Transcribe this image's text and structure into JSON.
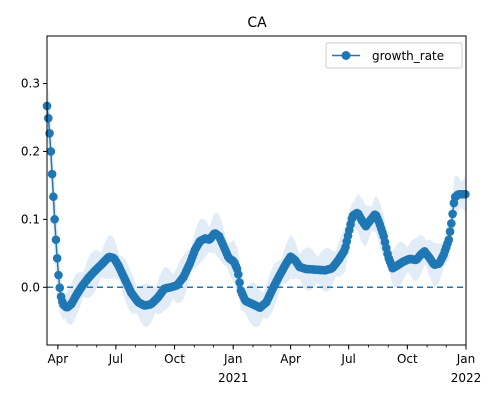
{
  "chart_data": {
    "type": "line",
    "title": "CA",
    "xlabel": "",
    "ylabel": "",
    "x_ticks": [
      {
        "date": "2020-04-01",
        "label": "Apr",
        "sub": ""
      },
      {
        "date": "2020-07-01",
        "label": "Jul",
        "sub": ""
      },
      {
        "date": "2020-10-01",
        "label": "Oct",
        "sub": ""
      },
      {
        "date": "2021-01-01",
        "label": "Jan",
        "sub": "2021"
      },
      {
        "date": "2021-04-01",
        "label": "Apr",
        "sub": ""
      },
      {
        "date": "2021-07-01",
        "label": "Jul",
        "sub": ""
      },
      {
        "date": "2021-10-01",
        "label": "Oct",
        "sub": ""
      },
      {
        "date": "2022-01-01",
        "label": "Jan",
        "sub": "2022"
      }
    ],
    "y_ticks": [
      "0.0",
      "0.1",
      "0.2",
      "0.3"
    ],
    "xlim": [
      "2020-03-15",
      "2022-01-01"
    ],
    "ylim": [
      -0.085,
      0.37
    ],
    "grid": false,
    "legend": {
      "position": "upper right",
      "entries": [
        "growth_rate"
      ]
    },
    "reference_line": {
      "y": 0.0,
      "style": "dashed"
    },
    "colors": {
      "line": "#1f77b4",
      "band": "#cfe0f1"
    },
    "series": [
      {
        "name": "growth_rate",
        "points": [
          [
            "2020-03-15",
            0.267
          ],
          [
            "2020-03-18",
            0.24
          ],
          [
            "2020-03-21",
            0.2
          ],
          [
            "2020-03-24",
            0.15
          ],
          [
            "2020-03-27",
            0.1
          ],
          [
            "2020-03-30",
            0.055
          ],
          [
            "2020-04-02",
            0.018
          ],
          [
            "2020-04-05",
            -0.01
          ],
          [
            "2020-04-09",
            -0.025
          ],
          [
            "2020-04-15",
            -0.03
          ],
          [
            "2020-04-22",
            -0.025
          ],
          [
            "2020-05-01",
            -0.01
          ],
          [
            "2020-05-10",
            0.003
          ],
          [
            "2020-05-20",
            0.015
          ],
          [
            "2020-05-30",
            0.025
          ],
          [
            "2020-06-10",
            0.035
          ],
          [
            "2020-06-20",
            0.045
          ],
          [
            "2020-06-28",
            0.043
          ],
          [
            "2020-07-05",
            0.032
          ],
          [
            "2020-07-15",
            0.012
          ],
          [
            "2020-07-25",
            -0.008
          ],
          [
            "2020-08-05",
            -0.022
          ],
          [
            "2020-08-15",
            -0.027
          ],
          [
            "2020-08-25",
            -0.025
          ],
          [
            "2020-09-05",
            -0.015
          ],
          [
            "2020-09-15",
            -0.002
          ],
          [
            "2020-09-25",
            0.0
          ],
          [
            "2020-10-05",
            0.003
          ],
          [
            "2020-10-15",
            0.015
          ],
          [
            "2020-10-25",
            0.035
          ],
          [
            "2020-11-02",
            0.055
          ],
          [
            "2020-11-10",
            0.068
          ],
          [
            "2020-11-18",
            0.072
          ],
          [
            "2020-11-25",
            0.07
          ],
          [
            "2020-12-03",
            0.08
          ],
          [
            "2020-12-10",
            0.075
          ],
          [
            "2020-12-18",
            0.058
          ],
          [
            "2020-12-25",
            0.043
          ],
          [
            "2021-01-02",
            0.038
          ],
          [
            "2021-01-08",
            0.025
          ],
          [
            "2021-01-13",
            -0.005
          ],
          [
            "2021-01-20",
            -0.02
          ],
          [
            "2021-02-01",
            -0.025
          ],
          [
            "2021-02-12",
            -0.03
          ],
          [
            "2021-02-22",
            -0.022
          ],
          [
            "2021-03-05",
            0.0
          ],
          [
            "2021-03-15",
            0.018
          ],
          [
            "2021-03-25",
            0.035
          ],
          [
            "2021-04-01",
            0.045
          ],
          [
            "2021-04-08",
            0.04
          ],
          [
            "2021-04-15",
            0.03
          ],
          [
            "2021-04-25",
            0.027
          ],
          [
            "2021-05-10",
            0.026
          ],
          [
            "2021-05-25",
            0.025
          ],
          [
            "2021-06-05",
            0.028
          ],
          [
            "2021-06-15",
            0.04
          ],
          [
            "2021-06-25",
            0.055
          ],
          [
            "2021-07-01",
            0.08
          ],
          [
            "2021-07-07",
            0.105
          ],
          [
            "2021-07-15",
            0.11
          ],
          [
            "2021-07-22",
            0.098
          ],
          [
            "2021-07-28",
            0.09
          ],
          [
            "2021-08-05",
            0.1
          ],
          [
            "2021-08-12",
            0.108
          ],
          [
            "2021-08-18",
            0.095
          ],
          [
            "2021-08-25",
            0.075
          ],
          [
            "2021-09-01",
            0.045
          ],
          [
            "2021-09-08",
            0.028
          ],
          [
            "2021-09-15",
            0.032
          ],
          [
            "2021-09-25",
            0.038
          ],
          [
            "2021-10-05",
            0.042
          ],
          [
            "2021-10-15",
            0.04
          ],
          [
            "2021-10-22",
            0.048
          ],
          [
            "2021-10-28",
            0.053
          ],
          [
            "2021-11-05",
            0.043
          ],
          [
            "2021-11-12",
            0.033
          ],
          [
            "2021-11-20",
            0.035
          ],
          [
            "2021-11-27",
            0.048
          ],
          [
            "2021-12-05",
            0.07
          ],
          [
            "2021-12-10",
            0.1
          ],
          [
            "2021-12-14",
            0.132
          ],
          [
            "2021-12-20",
            0.137
          ],
          [
            "2021-12-26",
            0.137
          ],
          [
            "2022-01-01",
            0.137
          ]
        ]
      }
    ]
  }
}
